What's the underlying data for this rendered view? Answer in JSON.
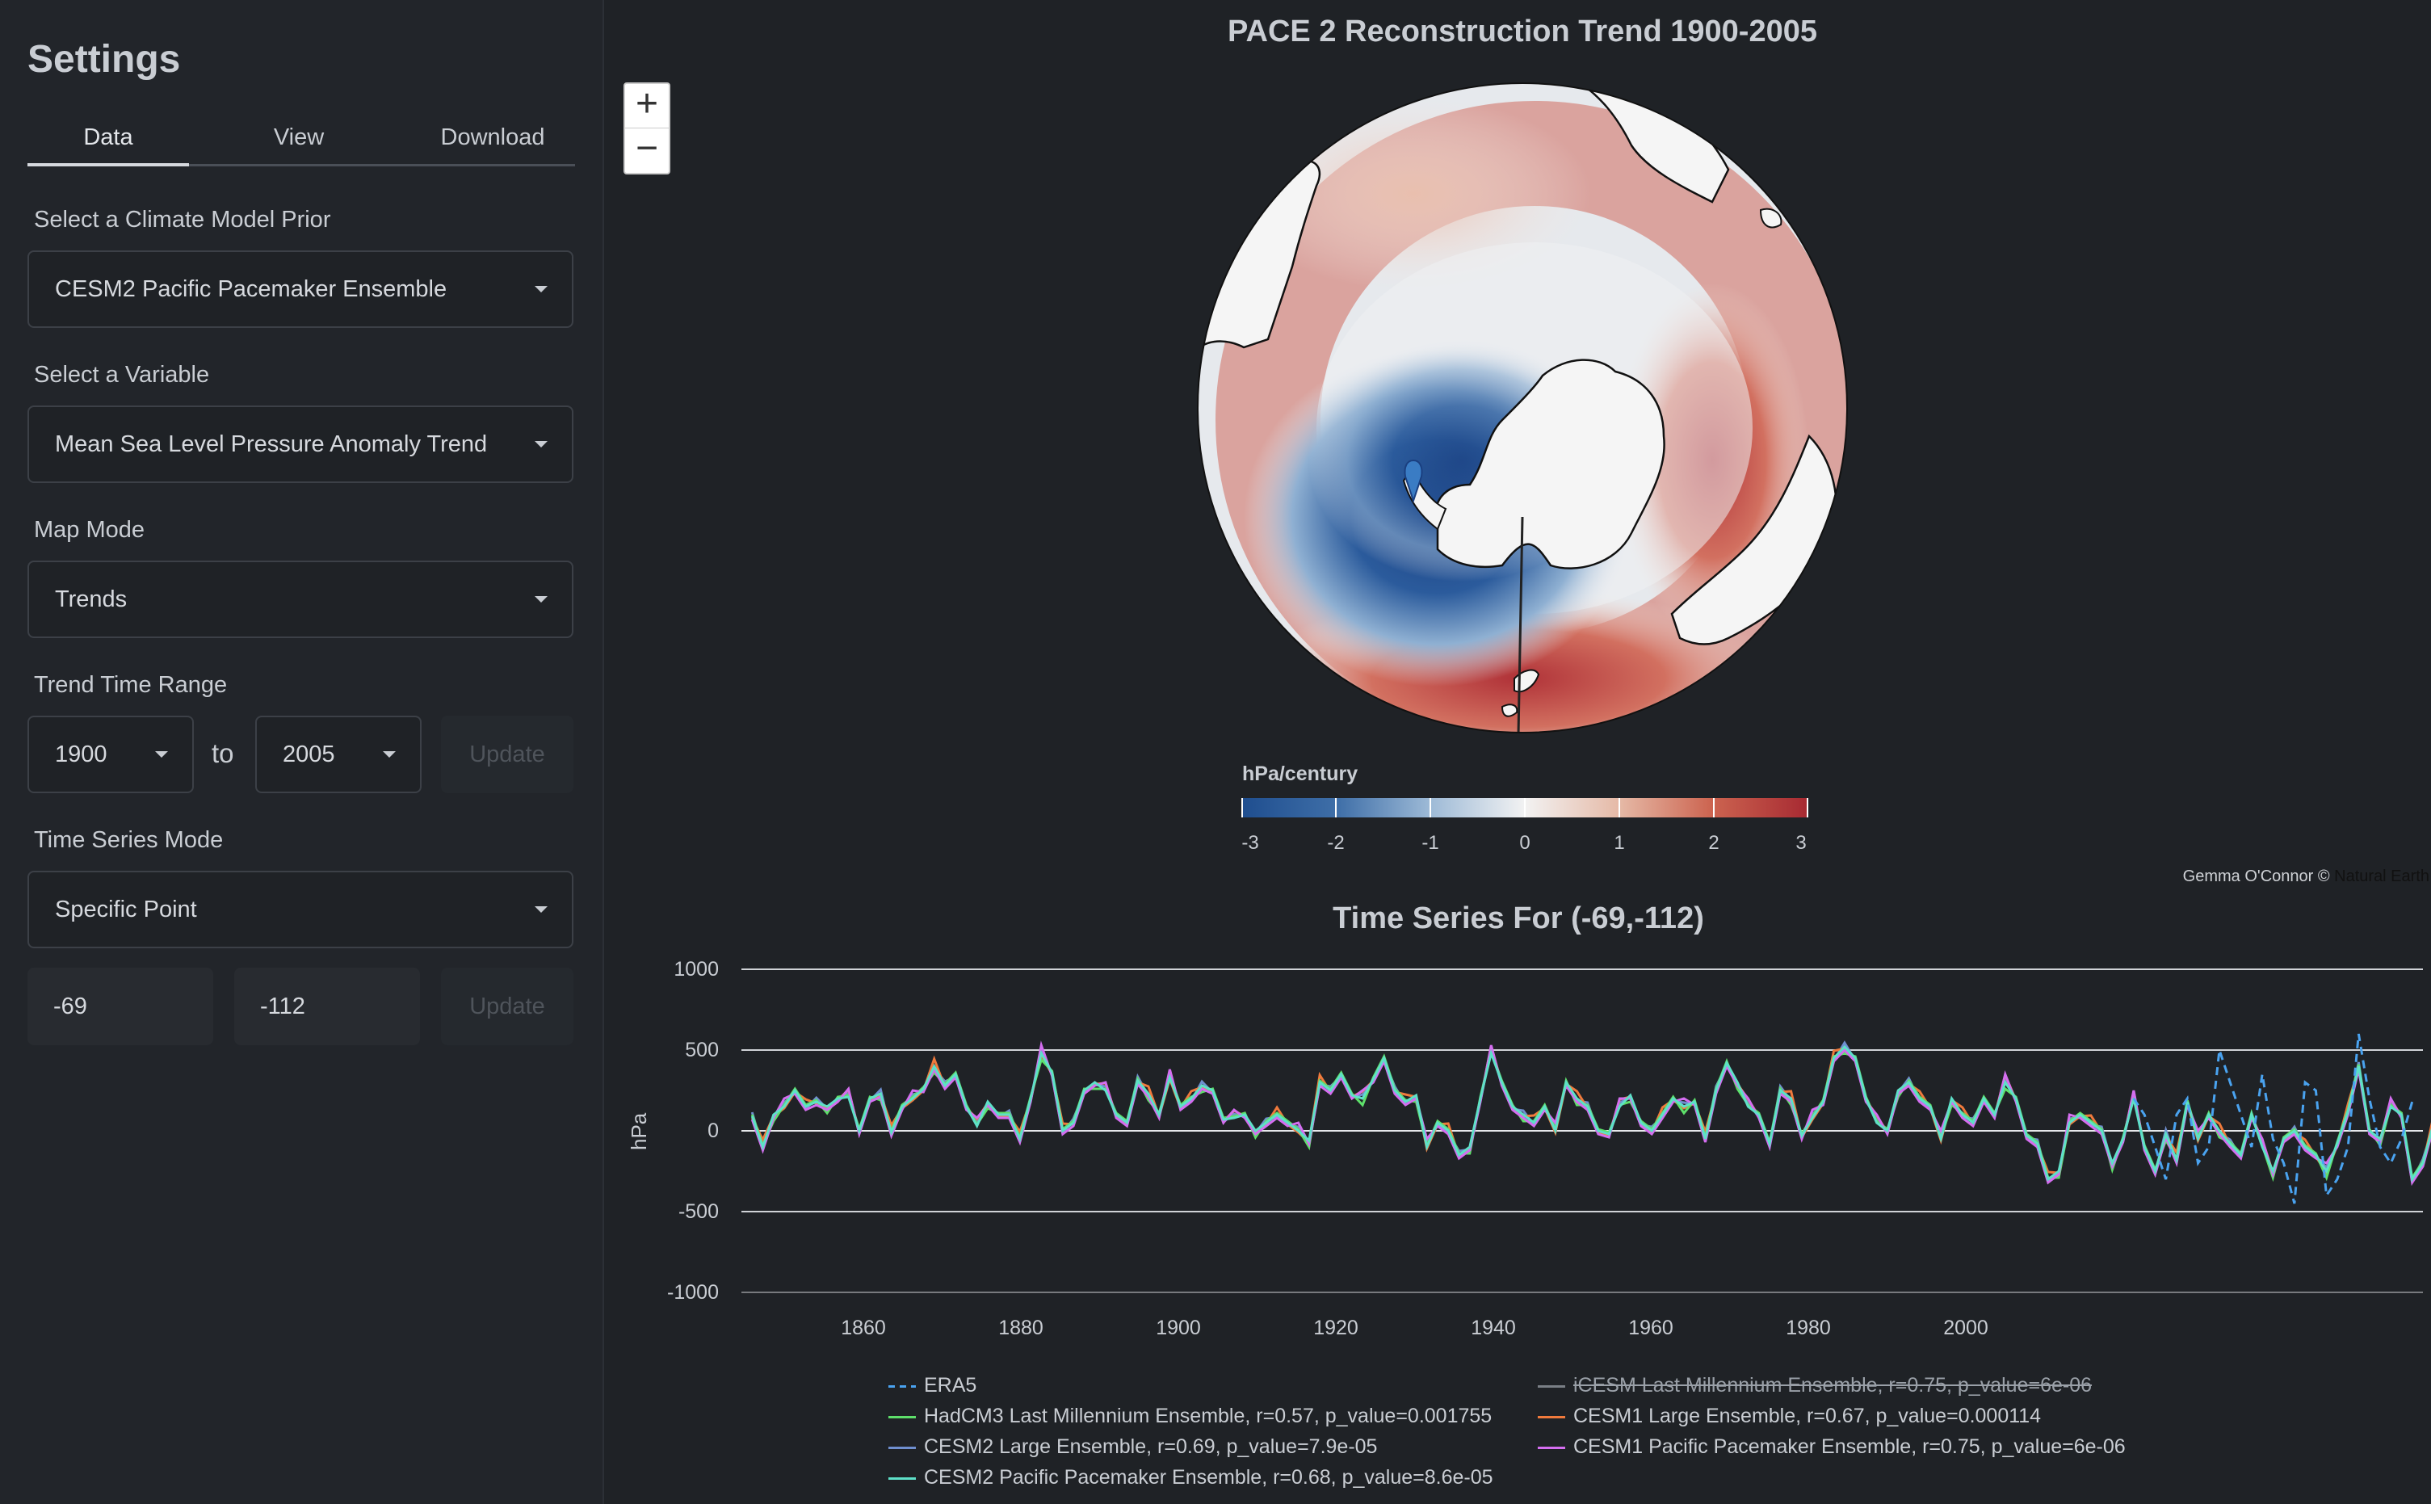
{
  "sidebar": {
    "title": "Settings",
    "tabs": [
      "Data",
      "View",
      "Download"
    ],
    "model_label": "Select a Climate Model Prior",
    "model_value": "CESM2 Pacific Pacemaker Ensemble",
    "variable_label": "Select a Variable",
    "variable_value": "Mean Sea Level Pressure Anomaly Trend",
    "map_mode_label": "Map Mode",
    "map_mode_value": "Trends",
    "trend_range_label": "Trend Time Range",
    "trend_start": "1900",
    "trend_to": "to",
    "trend_end": "2005",
    "update_label": "Update",
    "ts_mode_label": "Time Series Mode",
    "ts_mode_value": "Specific Point",
    "lat_value": "-69",
    "lon_value": "-112",
    "update2_label": "Update"
  },
  "map": {
    "title": "PACE 2 Reconstruction Trend 1900-2005",
    "zoom_in": "+",
    "zoom_out": "−",
    "colorbar_title": "hPa/century",
    "colorbar_ticks": [
      "-3",
      "-2",
      "-1",
      "0",
      "1",
      "2",
      "3"
    ],
    "attribution": "Gemma O'Connor © ",
    "attribution_link": "Natural Earth",
    "colors": {
      "neg": "#1f4e8f",
      "zero": "#f2f2f2",
      "pos": "#a72a32"
    }
  },
  "timeseries": {
    "title": "Time Series For (-69,-112)",
    "ylabel": "hPa",
    "yticks": [
      "1000",
      "500",
      "0",
      "-500",
      "-1000"
    ],
    "xticks": [
      "1860",
      "1880",
      "1900",
      "1920",
      "1940",
      "1960",
      "1980",
      "2000"
    ],
    "legend": [
      {
        "label": "ERA5",
        "color": "#4aa3f0",
        "dashed": true,
        "off": false
      },
      {
        "label": "iCESM Last Millennium Ensemble, r=0.75, p_value=6e-06",
        "color": "#7a7f86",
        "dashed": false,
        "off": true
      },
      {
        "label": "HadCM3 Last Millennium Ensemble, r=0.57, p_value=0.001755",
        "color": "#5ee06a",
        "dashed": false,
        "off": false
      },
      {
        "label": "CESM1 Large Ensemble, r=0.67, p_value=0.000114",
        "color": "#f07a3c",
        "dashed": false,
        "off": false
      },
      {
        "label": "CESM2 Large Ensemble, r=0.69, p_value=7.9e-05",
        "color": "#6f8fcf",
        "dashed": false,
        "off": false
      },
      {
        "label": "CESM1 Pacific Pacemaker Ensemble, r=0.75, p_value=6e-06",
        "color": "#d46ef0",
        "dashed": false,
        "off": false
      },
      {
        "label": "CESM2 Pacific Pacemaker Ensemble, r=0.68, p_value=8.6e-05",
        "color": "#5ee0c8",
        "dashed": false,
        "off": false
      }
    ]
  },
  "chart_data": {
    "type": "line",
    "title": "Time Series For (-69,-112)",
    "xlabel": "",
    "ylabel": "hPa",
    "xlim": [
      1849,
      2006
    ],
    "ylim": [
      -1000,
      1000
    ],
    "grid": true,
    "legend_position": "bottom",
    "series_main": {
      "name": "CESM2 Pacific Pacemaker Ensemble, r=0.68, p_value=8.6e-05",
      "x_start": 1850,
      "values": [
        90,
        -100,
        100,
        150,
        250,
        150,
        180,
        150,
        200,
        210,
        0,
        200,
        230,
        -10,
        150,
        200,
        260,
        400,
        280,
        350,
        150,
        30,
        180,
        100,
        100,
        -50,
        200,
        480,
        360,
        0,
        50,
        250,
        300,
        250,
        100,
        50,
        310,
        230,
        100,
        330,
        150,
        200,
        280,
        250,
        70,
        80,
        100,
        0,
        50,
        100,
        50,
        0,
        -60,
        300,
        250,
        350,
        220,
        200,
        320,
        450,
        250,
        180,
        220,
        -100,
        50,
        0,
        -150,
        -100,
        200,
        480,
        300,
        150,
        100,
        50,
        150,
        0,
        300,
        200,
        150,
        0,
        -20,
        150,
        220,
        50,
        0,
        100,
        200,
        150,
        180,
        -50,
        250,
        420,
        300,
        150,
        100,
        -80,
        250,
        200,
        -30,
        80,
        180,
        450,
        520,
        450,
        200,
        50,
        0,
        250,
        300,
        200,
        150,
        -50,
        200,
        100,
        50,
        200,
        100,
        300,
        200,
        -30,
        -80,
        -300,
        -250,
        50,
        100,
        50,
        0,
        -200,
        -50,
        200,
        -100,
        -250,
        -20,
        -180,
        180,
        -50,
        100,
        0,
        -80,
        -150,
        100,
        -100,
        -250,
        -50,
        0,
        -100,
        -150,
        -250,
        -80,
        120,
        400,
        0,
        -50,
        150,
        100,
        -300,
        -200,
        50,
        -100,
        -150,
        350,
        -150,
        -300,
        80,
        20,
        -200,
        -350,
        -80,
        -200,
        -350,
        -200,
        -650,
        -350,
        -200,
        -100,
        100,
        0,
        -200,
        -100,
        50,
        150
      ]
    },
    "series_era5": {
      "name": "ERA5",
      "x_start": 1979,
      "values": [
        200,
        100,
        -100,
        -300,
        100,
        200,
        -200,
        -100,
        500,
        300,
        100,
        -100,
        350,
        -50,
        -200,
        -450,
        300,
        250,
        -400,
        -300,
        -100,
        600,
        200,
        -100,
        -200,
        -50,
        180
      ]
    }
  }
}
